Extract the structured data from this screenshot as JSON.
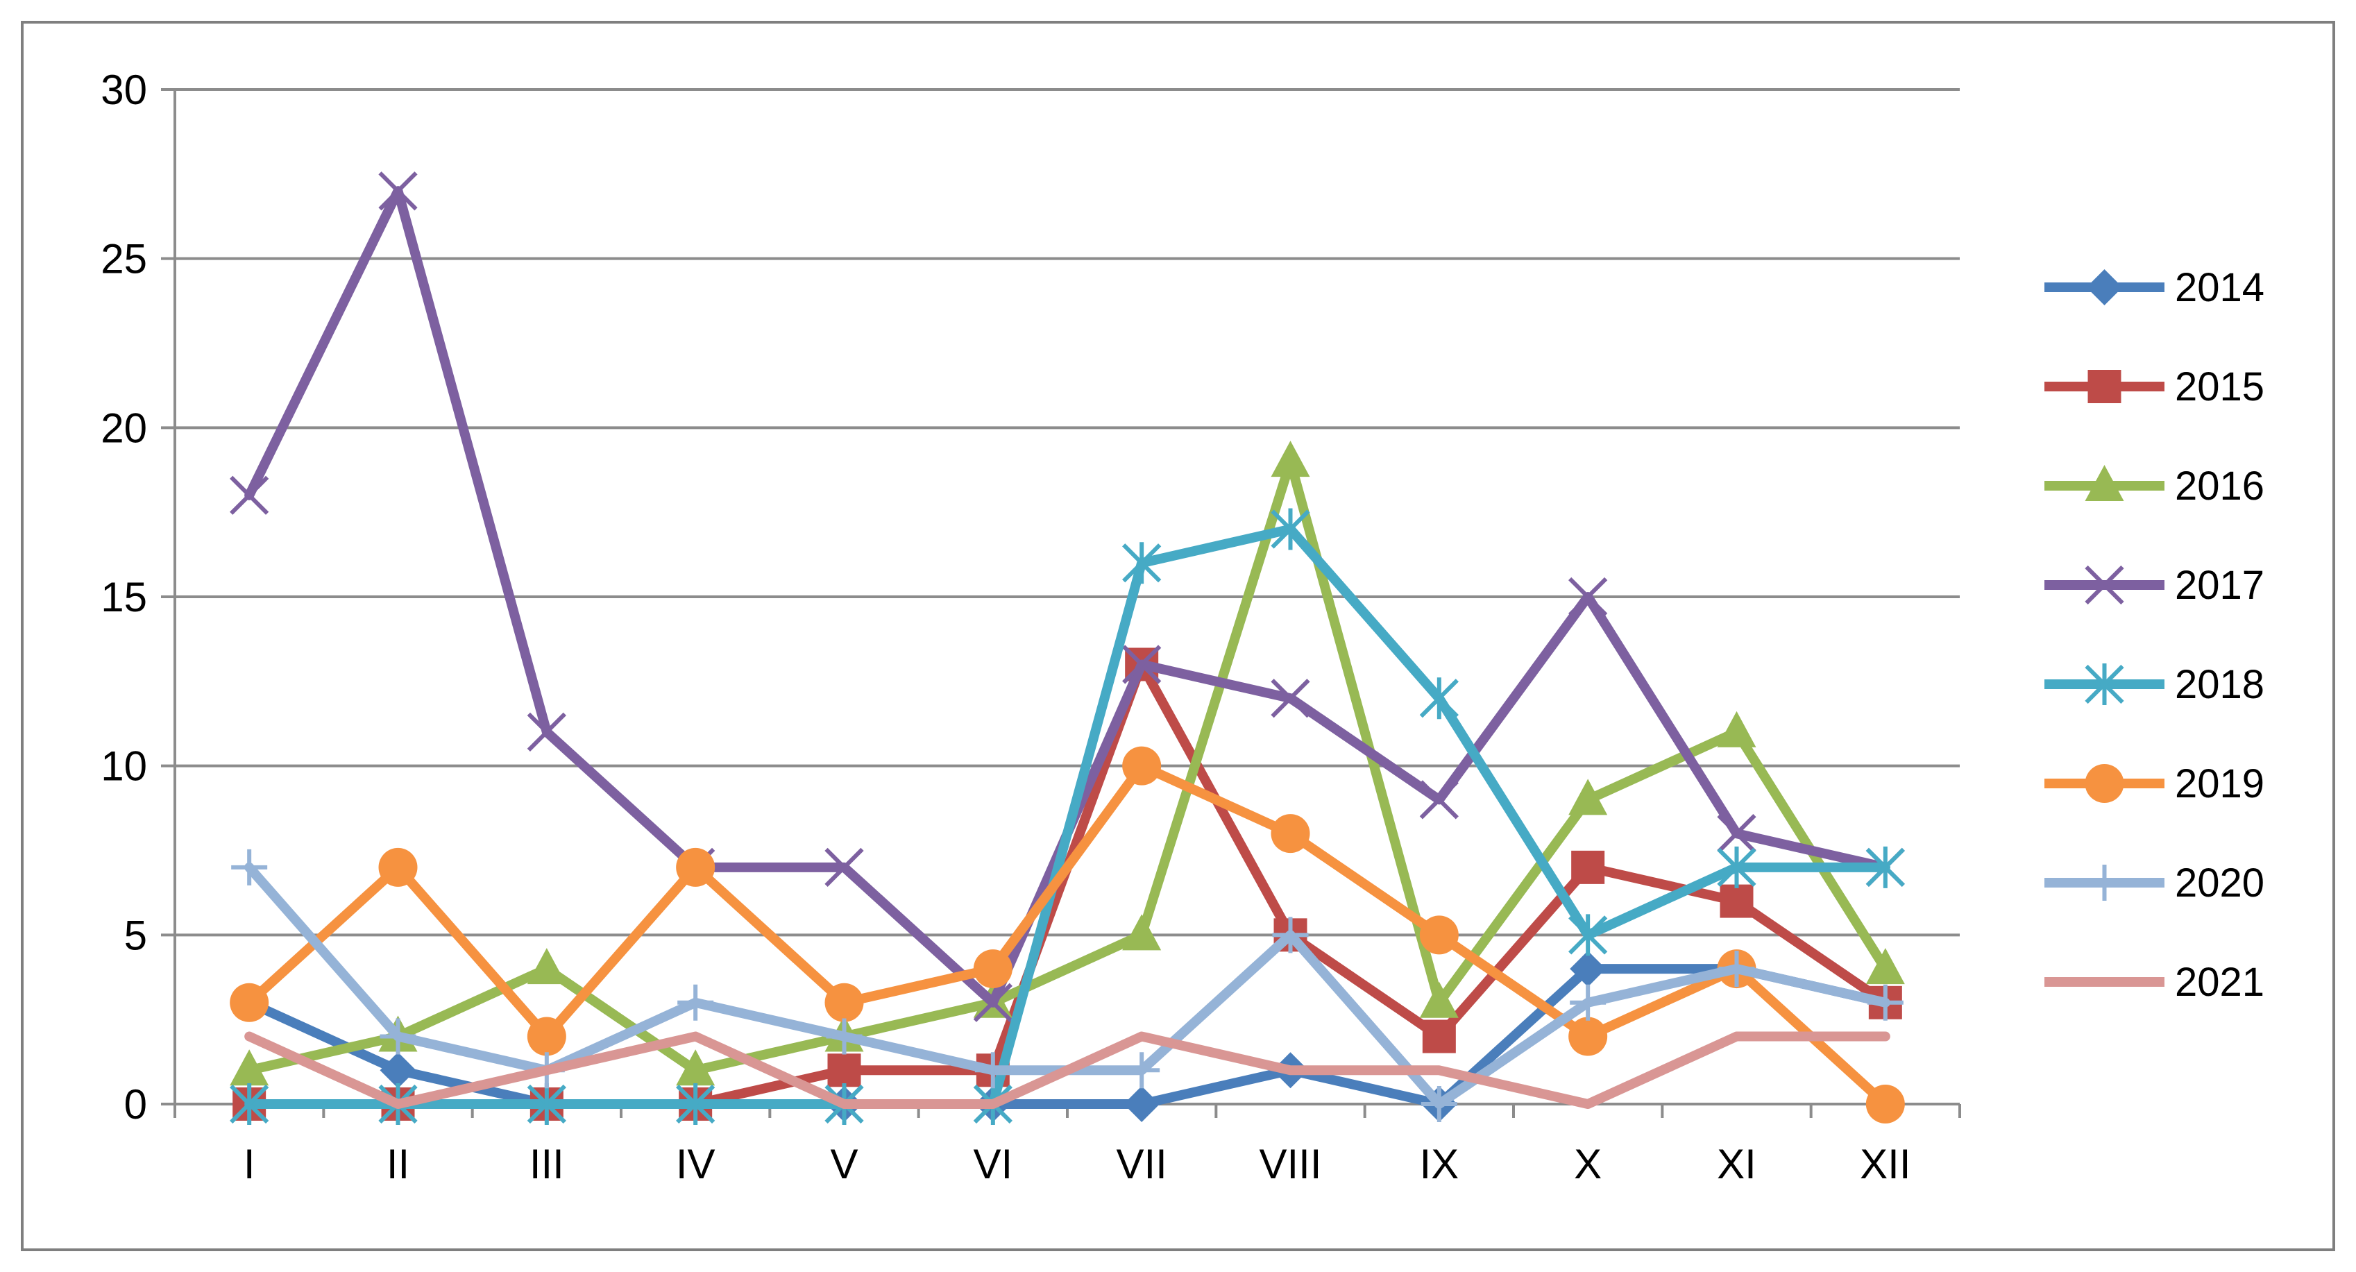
{
  "chart_data": {
    "type": "line",
    "title": "",
    "xlabel": "",
    "ylabel": "",
    "categories": [
      "I",
      "II",
      "III",
      "IV",
      "V",
      "VI",
      "VII",
      "VIII",
      "IX",
      "X",
      "XI",
      "XII"
    ],
    "ylim": [
      0,
      30
    ],
    "yticks": [
      "0",
      "5",
      "10",
      "15",
      "20",
      "25",
      "30"
    ],
    "grid": true,
    "legend": "right",
    "series": [
      {
        "name": "2014",
        "color": "#4a7ebb",
        "marker": "diamond",
        "values": [
          3,
          1,
          0,
          0,
          0,
          0,
          0,
          1,
          0,
          4,
          4,
          3
        ]
      },
      {
        "name": "2015",
        "color": "#be4b48",
        "marker": "square",
        "values": [
          0,
          0,
          0,
          0,
          1,
          1,
          13,
          5,
          2,
          7,
          6,
          3
        ]
      },
      {
        "name": "2016",
        "color": "#98b954",
        "marker": "triangle",
        "values": [
          1,
          2,
          4,
          1,
          2,
          3,
          5,
          19,
          3,
          9,
          11,
          4
        ]
      },
      {
        "name": "2017",
        "color": "#7d60a0",
        "marker": "x",
        "values": [
          18,
          27,
          11,
          7,
          7,
          3,
          13,
          12,
          9,
          15,
          8,
          7
        ]
      },
      {
        "name": "2018",
        "color": "#46aac5",
        "marker": "star",
        "values": [
          0,
          0,
          0,
          0,
          0,
          0,
          16,
          17,
          12,
          5,
          7,
          7
        ]
      },
      {
        "name": "2019",
        "color": "#f69240",
        "marker": "circle",
        "values": [
          3,
          7,
          2,
          7,
          3,
          4,
          10,
          8,
          5,
          2,
          4,
          0
        ]
      },
      {
        "name": "2020",
        "color": "#95b3d7",
        "marker": "plus",
        "values": [
          7,
          2,
          1,
          3,
          2,
          1,
          1,
          5,
          0,
          3,
          4,
          3
        ]
      },
      {
        "name": "2021",
        "color": "#d99694",
        "marker": "none",
        "values": [
          2,
          0,
          1,
          2,
          0,
          0,
          2,
          1,
          1,
          0,
          2,
          2
        ]
      }
    ]
  }
}
